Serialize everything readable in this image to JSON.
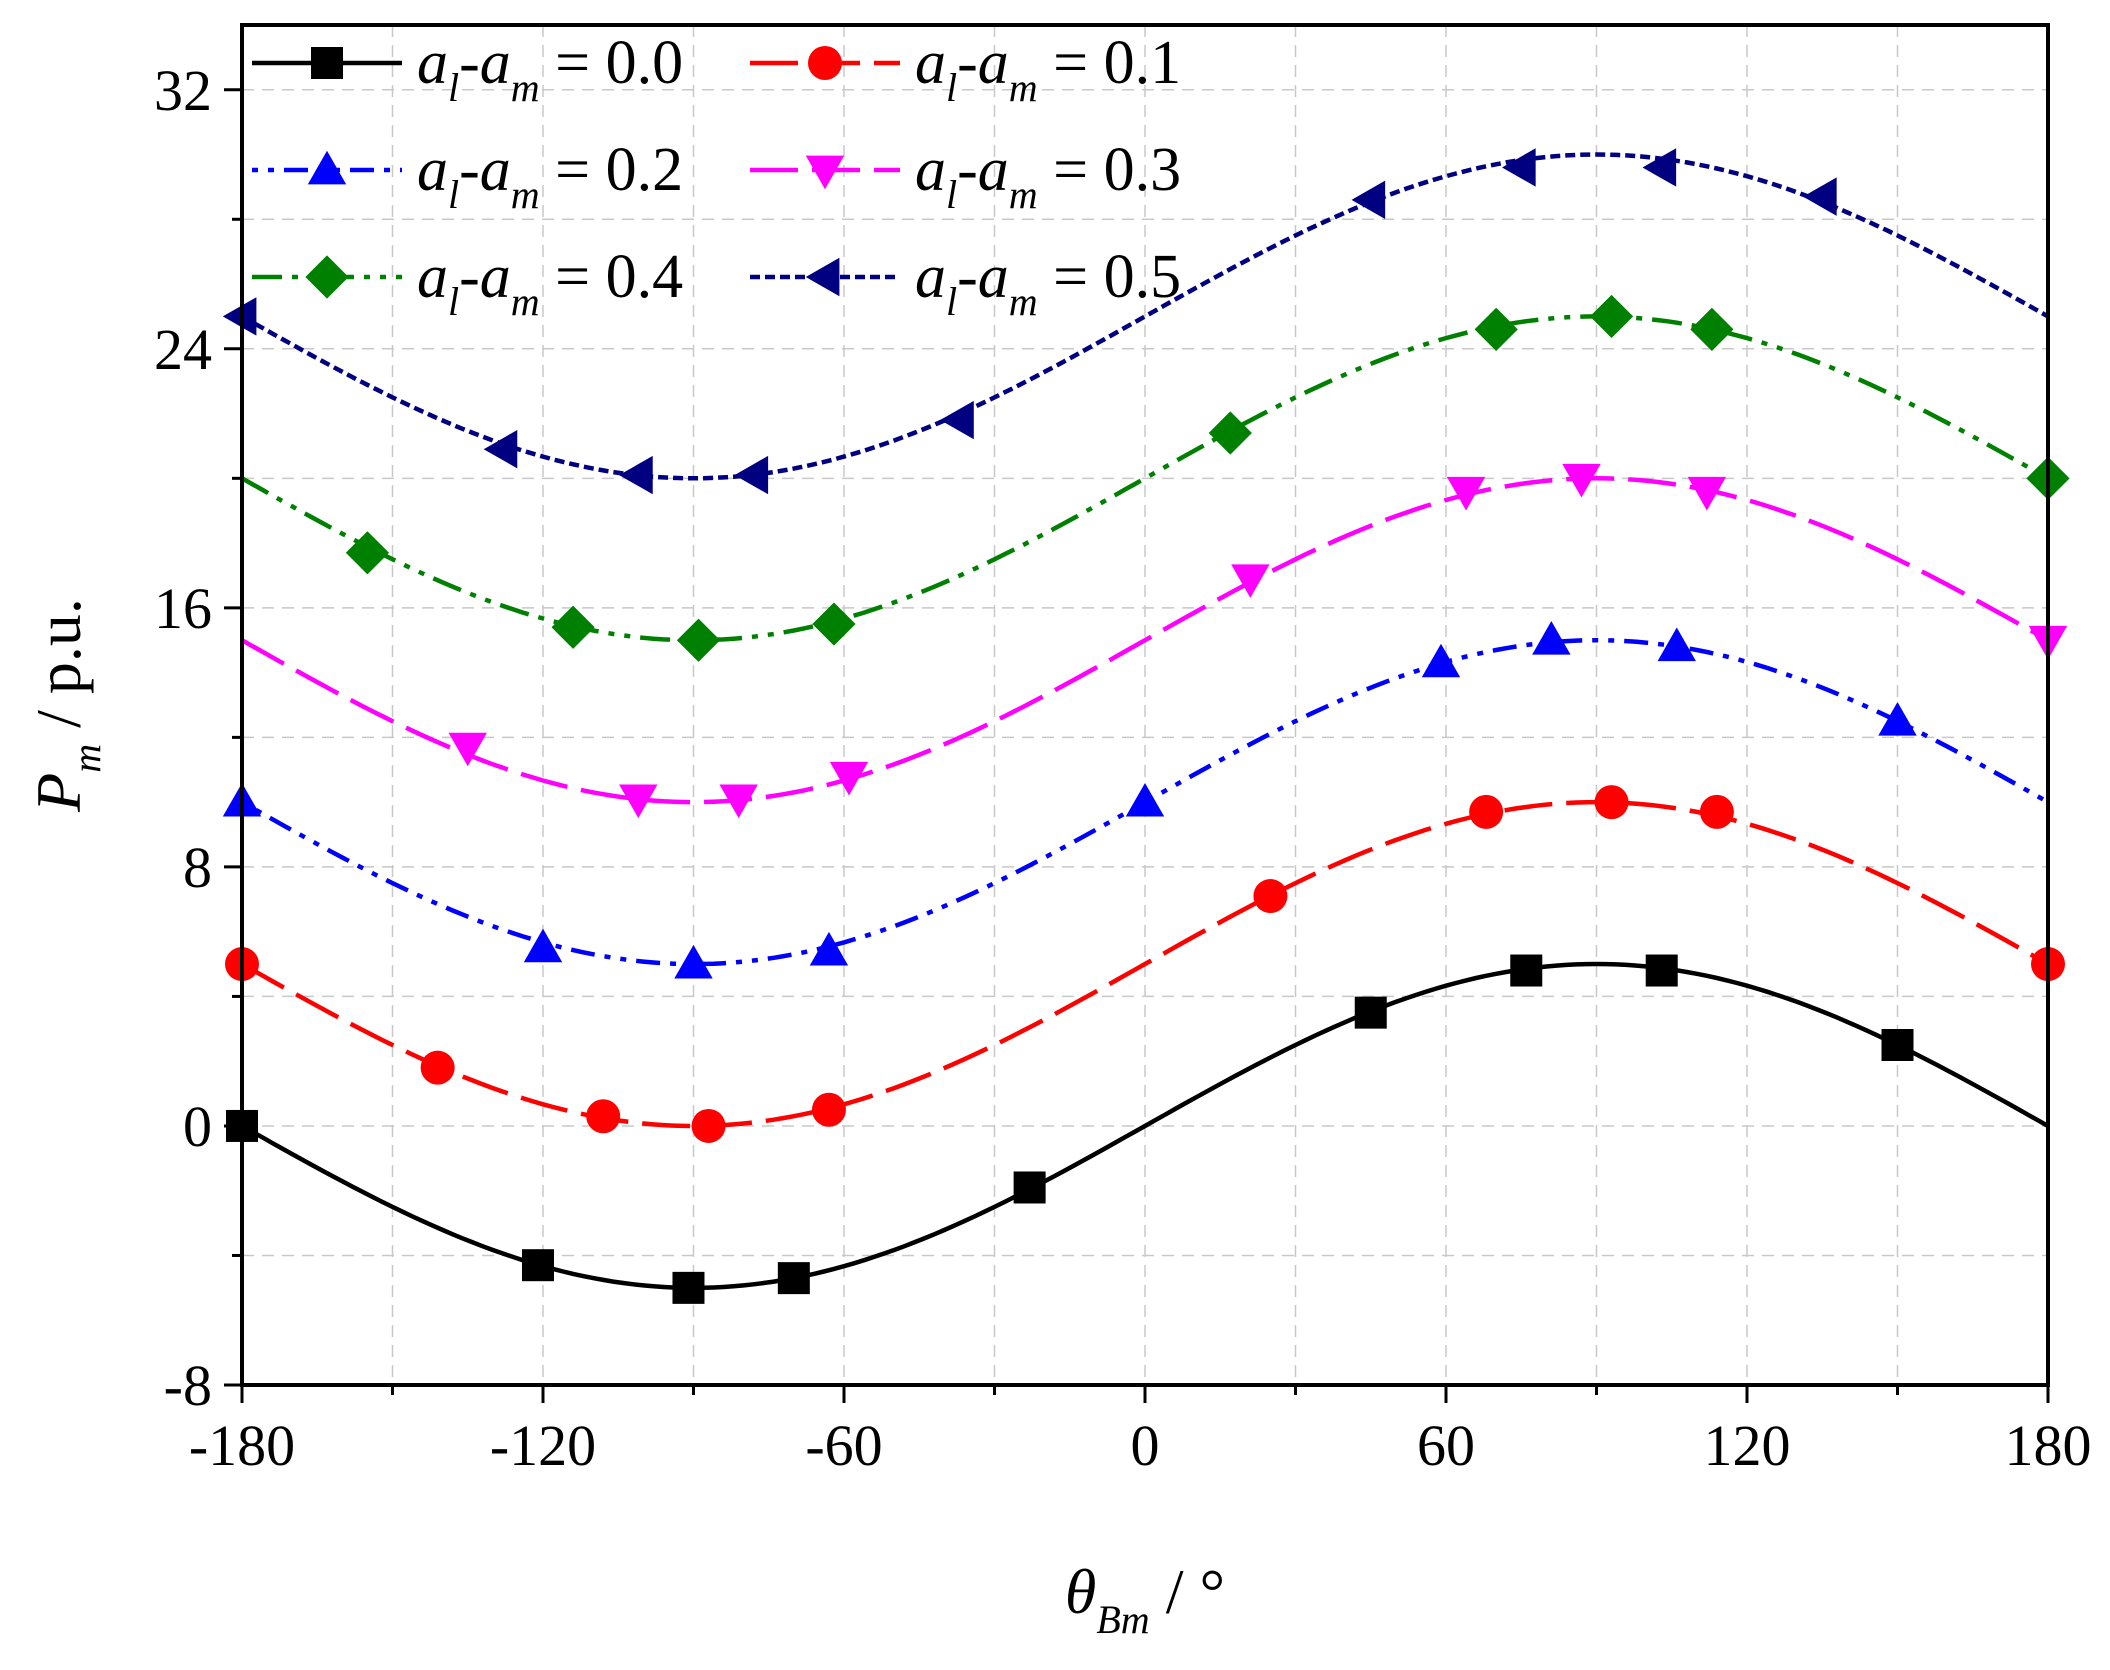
{
  "chart_data": {
    "type": "line",
    "title": "",
    "xlabel": {
      "main": "θ",
      "sub": "Bm",
      "unit": " / °"
    },
    "ylabel": {
      "main": "P",
      "sub": "m",
      "unit": " / p.u."
    },
    "xlim": [
      -180,
      180
    ],
    "ylim": [
      -8,
      34
    ],
    "xticks": [
      -180,
      -120,
      -60,
      0,
      60,
      120,
      180
    ],
    "xtick_labels": [
      "-180",
      "-120",
      "-60",
      "0",
      "60",
      "120",
      "180"
    ],
    "yticks": [
      -8,
      0,
      8,
      16,
      24,
      32
    ],
    "ytick_labels": [
      "-8",
      "0",
      "8",
      "16",
      "24",
      "32"
    ],
    "grid": true,
    "legend_position": "top-left",
    "x": [
      -180,
      -150,
      -120,
      -90,
      -60,
      -30,
      0,
      30,
      60,
      90,
      120,
      150,
      180
    ],
    "series": [
      {
        "name": "0.0",
        "label_a": "a",
        "label_l": "l",
        "label_m": "m",
        "label_eq": " = 0.0",
        "color": "#000000",
        "marker": "square",
        "dash": "none",
        "values": [
          0,
          -2.5,
          -4.33,
          -5,
          -4.33,
          -2.5,
          0,
          2.5,
          4.33,
          5,
          4.33,
          2.5,
          0
        ],
        "marker_x": [
          -180,
          -121,
          -91,
          -70,
          -23,
          45,
          76,
          103,
          150
        ],
        "marker_y": [
          0,
          -4.3,
          -5,
          -4.7,
          -1.9,
          3.5,
          4.8,
          4.8,
          2.5
        ]
      },
      {
        "name": "0.1",
        "label_a": "a",
        "label_l": "l",
        "label_m": "m",
        "label_eq": " = 0.1",
        "color": "#ff0000",
        "marker": "circle",
        "dash": "long-dash",
        "values": [
          5,
          2.5,
          0.67,
          0,
          0.67,
          2.5,
          5,
          7.5,
          9.33,
          10,
          9.33,
          7.5,
          5
        ],
        "marker_x": [
          -180,
          -141,
          -108,
          -87,
          -63,
          25,
          68,
          93,
          114,
          180
        ],
        "marker_y": [
          5,
          1.8,
          0.3,
          0,
          0.5,
          7.1,
          9.7,
          10,
          9.7,
          5
        ]
      },
      {
        "name": "0.2",
        "label_a": "a",
        "label_l": "l",
        "label_m": "m",
        "label_eq": " = 0.2",
        "color": "#0000ff",
        "marker": "triangle-up",
        "dash": "dot-dot-dash",
        "values": [
          10,
          7.5,
          5.67,
          5,
          5.67,
          7.5,
          10,
          12.5,
          14.33,
          15,
          14.33,
          12.5,
          10
        ],
        "marker_x": [
          -180,
          -120,
          -90,
          -63,
          0,
          59,
          81,
          106,
          150
        ],
        "marker_y": [
          10,
          5.5,
          5,
          5.4,
          10,
          14.3,
          15,
          14.8,
          12.5
        ]
      },
      {
        "name": "0.3",
        "label_a": "a",
        "label_l": "l",
        "label_m": "m",
        "label_eq": " = 0.3",
        "color": "#ff00ff",
        "marker": "triangle-down",
        "dash": "long-dash",
        "values": [
          15,
          12.5,
          10.67,
          10,
          10.67,
          12.5,
          15,
          17.5,
          19.33,
          20,
          19.33,
          17.5,
          15
        ],
        "marker_x": [
          -135,
          -101,
          -81,
          -59,
          21,
          64,
          87,
          112,
          180
        ],
        "marker_y": [
          11.7,
          10.1,
          10.1,
          10.8,
          16.9,
          19.6,
          20,
          19.6,
          15
        ]
      },
      {
        "name": "0.4",
        "label_a": "a",
        "label_l": "l",
        "label_m": "m",
        "label_eq": " = 0.4",
        "color": "#008000",
        "marker": "diamond",
        "dash": "dash-dot-dot",
        "values": [
          20,
          17.5,
          15.67,
          15,
          15.67,
          17.5,
          20,
          22.5,
          24.33,
          25,
          24.33,
          22.5,
          20
        ],
        "marker_x": [
          -155,
          -114,
          -89,
          -62,
          17,
          70,
          93,
          113,
          180
        ],
        "marker_y": [
          17.7,
          15.4,
          15,
          15.5,
          21.4,
          24.6,
          25,
          24.6,
          20
        ]
      },
      {
        "name": "0.5",
        "label_a": "a",
        "label_l": "l",
        "label_m": "m",
        "label_eq": " = 0.5",
        "color": "#000080",
        "marker": "triangle-left",
        "dash": "short-dash",
        "values": [
          25,
          22.5,
          20.67,
          20,
          20.67,
          22.5,
          25,
          27.5,
          29.33,
          30,
          29.33,
          27.5,
          25
        ],
        "marker_x": [
          -180,
          -128,
          -101,
          -78,
          -37,
          45,
          75,
          103,
          135
        ],
        "marker_y": [
          25,
          20.9,
          20.1,
          20.1,
          21.8,
          28.6,
          29.6,
          29.6,
          28.7
        ]
      }
    ]
  }
}
